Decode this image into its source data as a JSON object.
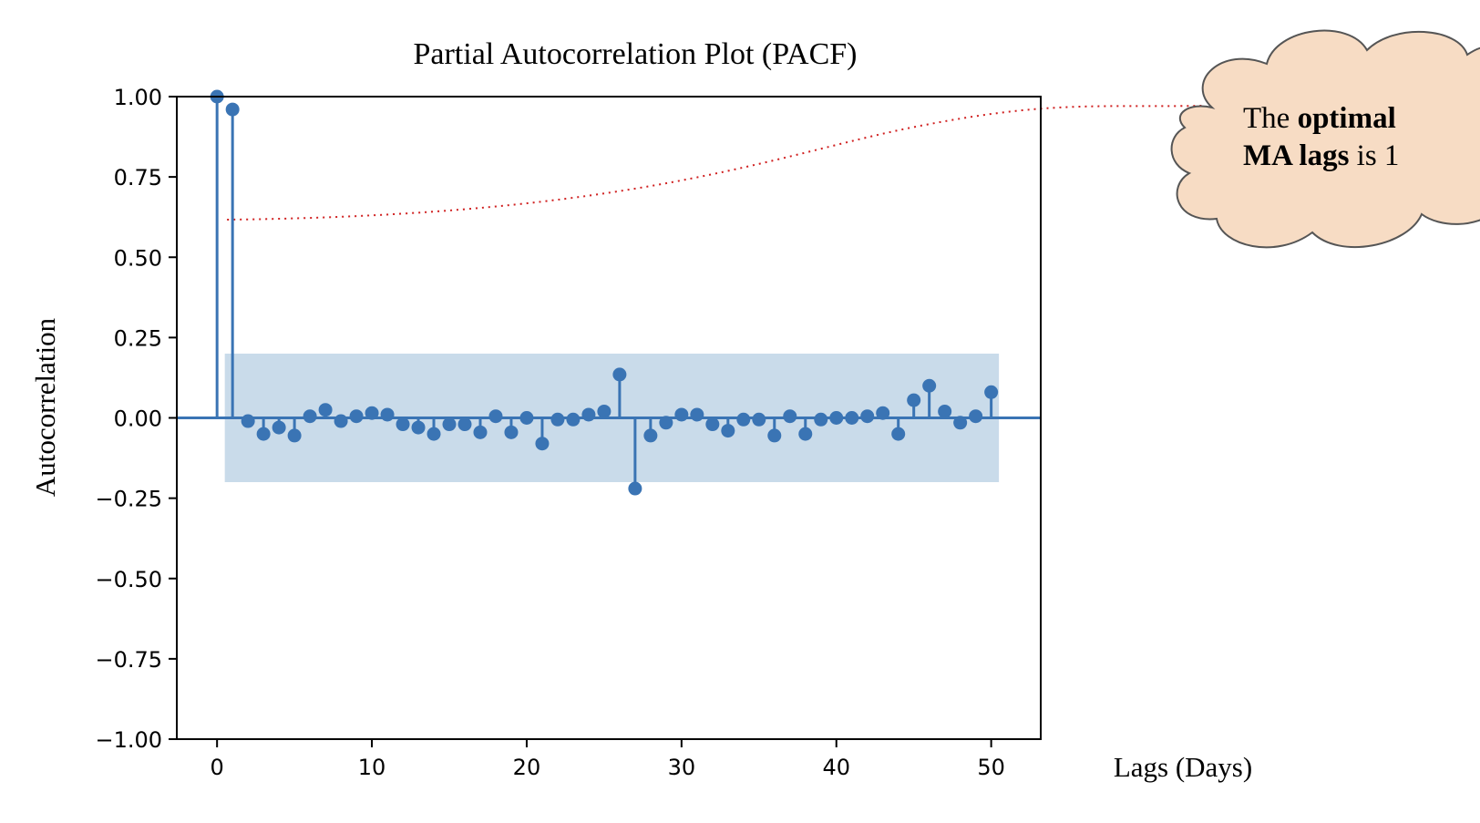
{
  "chart_data": {
    "type": "stem",
    "title": "Partial Autocorrelation Plot (PACF)",
    "xlabel": "Lags (Days)",
    "ylabel": "Autocorrelation",
    "xlim": [
      -2.6,
      53.2
    ],
    "ylim": [
      -1.0,
      1.0
    ],
    "x_ticks": [
      0,
      10,
      20,
      30,
      40,
      50
    ],
    "x_tick_labels": [
      "0",
      "10",
      "20",
      "30",
      "40",
      "50"
    ],
    "y_ticks": [
      1.0,
      0.75,
      0.5,
      0.25,
      0.0,
      -0.25,
      -0.5,
      -0.75,
      -1.0
    ],
    "y_tick_labels": [
      "1.00",
      "0.75",
      "0.50",
      "0.25",
      "0.00",
      "−0.25",
      "−0.50",
      "−0.75",
      "−1.00"
    ],
    "confidence_band": {
      "x_range": [
        0.5,
        50.5
      ],
      "upper": 0.2,
      "lower": -0.2,
      "color": "#c9dbea"
    },
    "series": [
      {
        "x": [
          0,
          1,
          2,
          3,
          4,
          5,
          6,
          7,
          8,
          9,
          10,
          11,
          12,
          13,
          14,
          15,
          16,
          17,
          18,
          19,
          20,
          21,
          22,
          23,
          24,
          25,
          26,
          27,
          28,
          29,
          30,
          31,
          32,
          33,
          34,
          35,
          36,
          37,
          38,
          39,
          40,
          41,
          42,
          43,
          44,
          45,
          46,
          47,
          48,
          49,
          50
        ],
        "values": [
          1.0,
          0.96,
          -0.01,
          -0.05,
          -0.03,
          -0.055,
          0.005,
          0.025,
          -0.01,
          0.005,
          0.015,
          0.01,
          -0.02,
          -0.03,
          -0.05,
          -0.02,
          -0.02,
          -0.045,
          0.005,
          -0.045,
          0.0,
          -0.08,
          -0.005,
          -0.005,
          0.01,
          0.02,
          0.135,
          -0.22,
          -0.055,
          -0.015,
          0.01,
          0.01,
          -0.02,
          -0.04,
          -0.005,
          -0.005,
          -0.055,
          0.005,
          -0.05,
          -0.005,
          0.0,
          0.0,
          0.005,
          0.015,
          -0.05,
          0.055,
          0.1,
          0.02,
          -0.015,
          0.005,
          0.08
        ],
        "color": "#3a74b4"
      }
    ],
    "grid": false,
    "annotation": {
      "shape": "cloud",
      "text_parts": [
        {
          "text": "The ",
          "bold": false
        },
        {
          "text": "optimal",
          "bold": true
        },
        {
          "text": "MA lags",
          "bold": true
        },
        {
          "text": " is 1",
          "bold": false
        }
      ],
      "fill": "#f7dcc4",
      "stroke": "#555555",
      "connector_color": "#d02020",
      "points_to_lag": 1
    }
  }
}
